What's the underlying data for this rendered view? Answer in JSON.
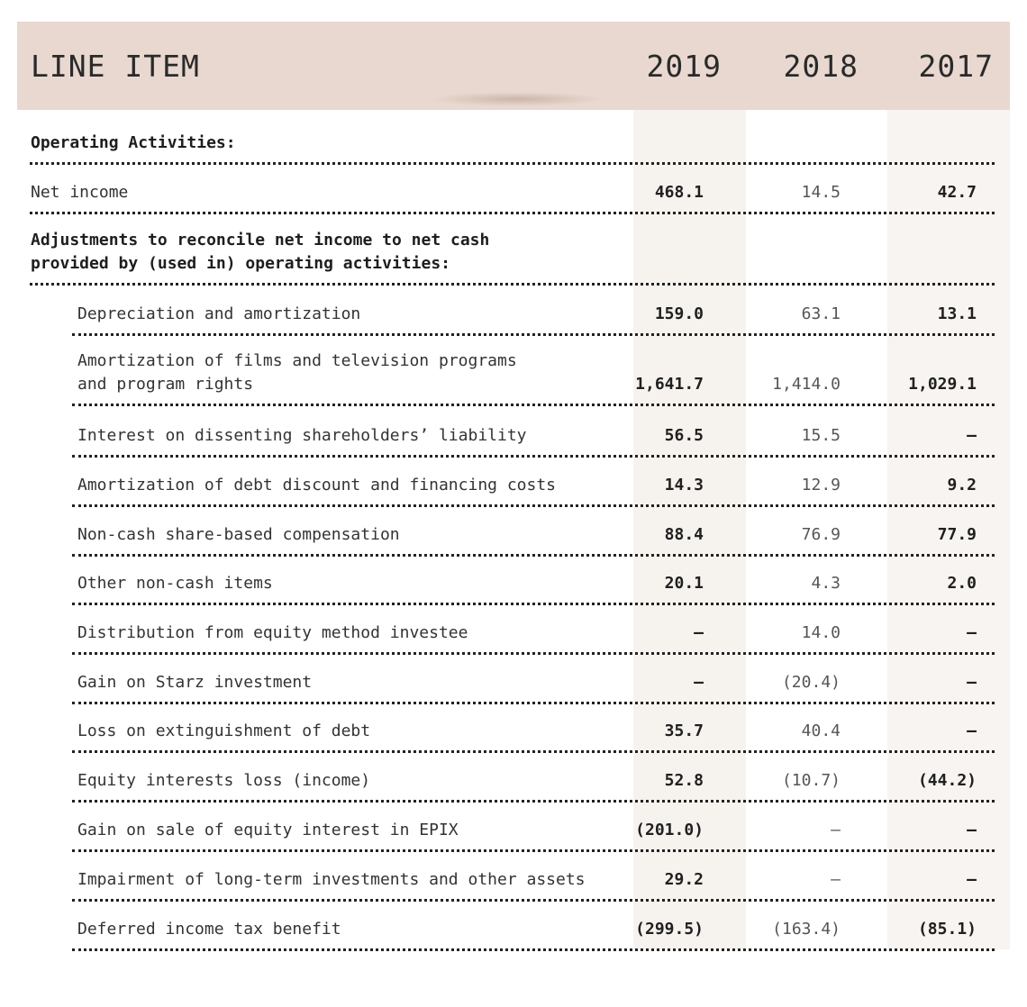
{
  "header": {
    "label": "LINE ITEM",
    "years": [
      "2019",
      "2018",
      "2017"
    ]
  },
  "rows": [
    {
      "label": "Operating Activities:",
      "bold": true,
      "values": [
        "",
        "",
        ""
      ]
    },
    {
      "label": "Net income",
      "bold": false,
      "values": [
        "468.1",
        "14.5",
        "42.7"
      ]
    },
    {
      "label": "Adjustments to reconcile net income to net cash\nprovided by (used in) operating activities:",
      "bold": true,
      "values": [
        "",
        "",
        ""
      ]
    },
    {
      "label": "Depreciation and amortization",
      "bold": false,
      "values": [
        "159.0",
        "63.1",
        "13.1"
      ]
    },
    {
      "label": "Amortization of films and television programs\nand program rights",
      "bold": false,
      "values": [
        "1,641.7",
        "1,414.0",
        "1,029.1"
      ]
    },
    {
      "label": "Interest on dissenting shareholders’ liability",
      "bold": false,
      "values": [
        "56.5",
        "15.5",
        "—"
      ]
    },
    {
      "label": "Amortization of debt discount and financing costs",
      "bold": false,
      "values": [
        "14.3",
        "12.9",
        "9.2"
      ]
    },
    {
      "label": "Non-cash share-based compensation",
      "bold": false,
      "values": [
        "88.4",
        "76.9",
        "77.9"
      ]
    },
    {
      "label": "Other non-cash items",
      "bold": false,
      "values": [
        "20.1",
        "4.3",
        "2.0"
      ]
    },
    {
      "label": "Distribution from equity method investee",
      "bold": false,
      "values": [
        "—",
        "14.0",
        "—"
      ]
    },
    {
      "label": "Gain on Starz investment",
      "bold": false,
      "values": [
        "—",
        "(20.4)",
        "—"
      ]
    },
    {
      "label": "Loss on extinguishment of debt",
      "bold": false,
      "values": [
        "35.7",
        "40.4",
        "—"
      ]
    },
    {
      "label": "Equity interests loss (income)",
      "bold": false,
      "values": [
        "52.8",
        "(10.7)",
        "(44.2)"
      ]
    },
    {
      "label": "Gain on sale of equity interest in EPIX",
      "bold": false,
      "values": [
        "(201.0)",
        "—",
        "—"
      ]
    },
    {
      "label": "Impairment of long-term investments and other assets",
      "bold": false,
      "values": [
        "29.2",
        "—",
        "—"
      ]
    },
    {
      "label": "Deferred income tax benefit",
      "bold": false,
      "values": [
        "(299.5)",
        "(163.4)",
        "(85.1)"
      ]
    }
  ]
}
